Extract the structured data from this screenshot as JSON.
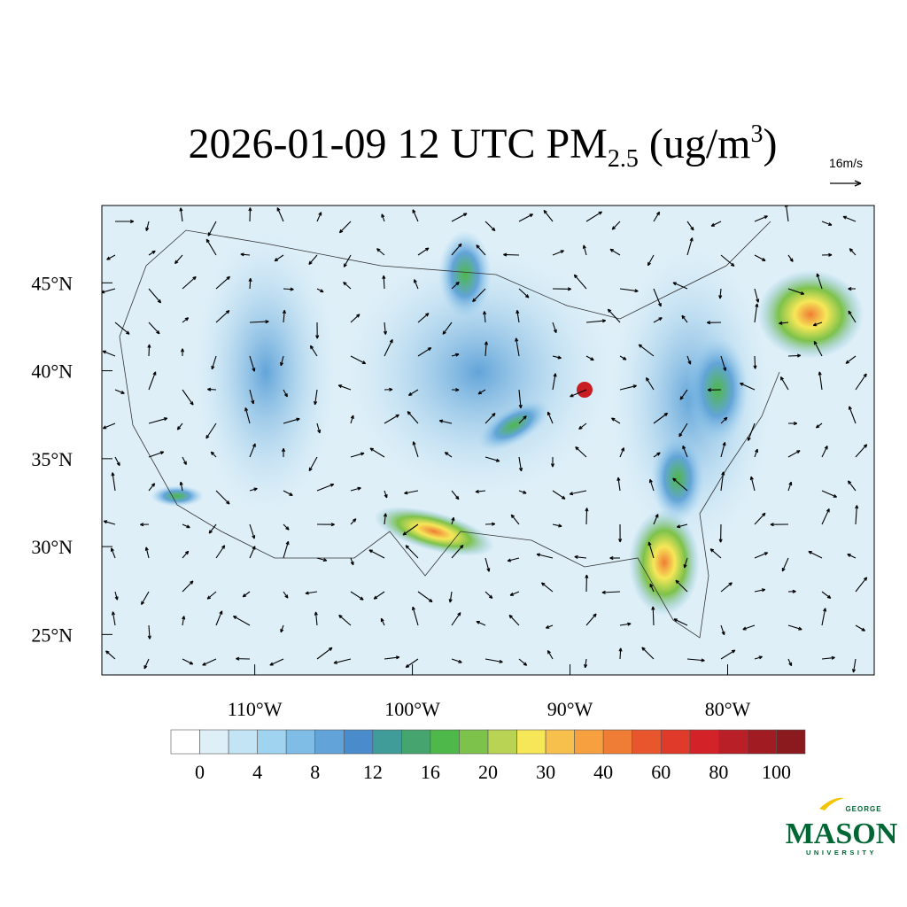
{
  "title": {
    "main": "2026-01-09 12 UTC PM",
    "sub": "2.5",
    "unit_open": " (ug/m",
    "sup": "3",
    "unit_close": ")"
  },
  "reference_vector": "16m/s",
  "map": {
    "xlim": [
      -119.7,
      -70.7
    ],
    "ylim": [
      22.7,
      49.4
    ],
    "xticks": [
      {
        "value": -110,
        "label": "110°W"
      },
      {
        "value": -100,
        "label": "100°W"
      },
      {
        "value": -90,
        "label": "90°W"
      },
      {
        "value": -80,
        "label": "80°W"
      }
    ],
    "yticks": [
      {
        "value": 45,
        "label": "45°N"
      },
      {
        "value": 40,
        "label": "40°N"
      },
      {
        "value": 35,
        "label": "35°N"
      },
      {
        "value": 30,
        "label": "30°N"
      },
      {
        "value": 25,
        "label": "25°N"
      }
    ]
  },
  "colorbar": {
    "colors": [
      "#ffffff",
      "#deeff8",
      "#c2e4f4",
      "#9fd3f0",
      "#7fbde6",
      "#62a4d9",
      "#4a8ccb",
      "#3f9c98",
      "#46a56e",
      "#4fb84a",
      "#7dc24a",
      "#b9d454",
      "#f6e758",
      "#f7c04c",
      "#f6a040",
      "#f07d35",
      "#e8562e",
      "#df3a2a",
      "#d32328",
      "#b81f26",
      "#a01c22",
      "#8a1a1e"
    ],
    "labels": [
      0,
      4,
      8,
      12,
      16,
      20,
      30,
      40,
      60,
      80,
      100
    ]
  },
  "logo": {
    "top": "GEORGE",
    "main": "MASON",
    "bottom": "UNIVERSITY"
  }
}
